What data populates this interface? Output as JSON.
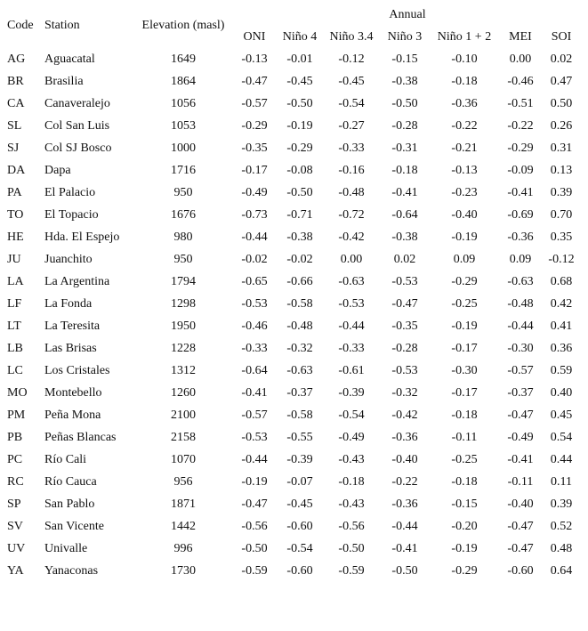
{
  "table": {
    "header": {
      "code": "Code",
      "station": "Station",
      "elevation": "Elevation (masl)",
      "group": "Annual",
      "indices": [
        "ONI",
        "Niño 4",
        "Niño 3.4",
        "Niño 3",
        "Niño 1 + 2",
        "MEI",
        "SOI"
      ]
    },
    "rows": [
      [
        "AG",
        "Aguacatal",
        "1649",
        "-0.13",
        "-0.01",
        "-0.12",
        "-0.15",
        "-0.10",
        "0.00",
        "0.02"
      ],
      [
        "BR",
        "Brasilia",
        "1864",
        "-0.47",
        "-0.45",
        "-0.45",
        "-0.38",
        "-0.18",
        "-0.46",
        "0.47"
      ],
      [
        "CA",
        "Canaveralejo",
        "1056",
        "-0.57",
        "-0.50",
        "-0.54",
        "-0.50",
        "-0.36",
        "-0.51",
        "0.50"
      ],
      [
        "SL",
        "Col San Luis",
        "1053",
        "-0.29",
        "-0.19",
        "-0.27",
        "-0.28",
        "-0.22",
        "-0.22",
        "0.26"
      ],
      [
        "SJ",
        "Col SJ Bosco",
        "1000",
        "-0.35",
        "-0.29",
        "-0.33",
        "-0.31",
        "-0.21",
        "-0.29",
        "0.31"
      ],
      [
        "DA",
        "Dapa",
        "1716",
        "-0.17",
        "-0.08",
        "-0.16",
        "-0.18",
        "-0.13",
        "-0.09",
        "0.13"
      ],
      [
        "PA",
        "El Palacio",
        "950",
        "-0.49",
        "-0.50",
        "-0.48",
        "-0.41",
        "-0.23",
        "-0.41",
        "0.39"
      ],
      [
        "TO",
        "El Topacio",
        "1676",
        "-0.73",
        "-0.71",
        "-0.72",
        "-0.64",
        "-0.40",
        "-0.69",
        "0.70"
      ],
      [
        "HE",
        "Hda. El Espejo",
        "980",
        "-0.44",
        "-0.38",
        "-0.42",
        "-0.38",
        "-0.19",
        "-0.36",
        "0.35"
      ],
      [
        "JU",
        "Juanchito",
        "950",
        "-0.02",
        "-0.02",
        "0.00",
        "0.02",
        "0.09",
        "0.09",
        "-0.12"
      ],
      [
        "LA",
        "La Argentina",
        "1794",
        "-0.65",
        "-0.66",
        "-0.63",
        "-0.53",
        "-0.29",
        "-0.63",
        "0.68"
      ],
      [
        "LF",
        "La Fonda",
        "1298",
        "-0.53",
        "-0.58",
        "-0.53",
        "-0.47",
        "-0.25",
        "-0.48",
        "0.42"
      ],
      [
        "LT",
        "La Teresita",
        "1950",
        "-0.46",
        "-0.48",
        "-0.44",
        "-0.35",
        "-0.19",
        "-0.44",
        "0.41"
      ],
      [
        "LB",
        "Las Brisas",
        "1228",
        "-0.33",
        "-0.32",
        "-0.33",
        "-0.28",
        "-0.17",
        "-0.30",
        "0.36"
      ],
      [
        "LC",
        "Los Cristales",
        "1312",
        "-0.64",
        "-0.63",
        "-0.61",
        "-0.53",
        "-0.30",
        "-0.57",
        "0.59"
      ],
      [
        "MO",
        "Montebello",
        "1260",
        "-0.41",
        "-0.37",
        "-0.39",
        "-0.32",
        "-0.17",
        "-0.37",
        "0.40"
      ],
      [
        "PM",
        "Peña Mona",
        "2100",
        "-0.57",
        "-0.58",
        "-0.54",
        "-0.42",
        "-0.18",
        "-0.47",
        "0.45"
      ],
      [
        "PB",
        "Peñas Blancas",
        "2158",
        "-0.53",
        "-0.55",
        "-0.49",
        "-0.36",
        "-0.11",
        "-0.49",
        "0.54"
      ],
      [
        "PC",
        "Río Cali",
        "1070",
        "-0.44",
        "-0.39",
        "-0.43",
        "-0.40",
        "-0.25",
        "-0.41",
        "0.44"
      ],
      [
        "RC",
        "Río Cauca",
        "956",
        "-0.19",
        "-0.07",
        "-0.18",
        "-0.22",
        "-0.18",
        "-0.11",
        "0.11"
      ],
      [
        "SP",
        "San Pablo",
        "1871",
        "-0.47",
        "-0.45",
        "-0.43",
        "-0.36",
        "-0.15",
        "-0.40",
        "0.39"
      ],
      [
        "SV",
        "San Vicente",
        "1442",
        "-0.56",
        "-0.60",
        "-0.56",
        "-0.44",
        "-0.20",
        "-0.47",
        "0.52"
      ],
      [
        "UV",
        "Univalle",
        "996",
        "-0.50",
        "-0.54",
        "-0.50",
        "-0.41",
        "-0.19",
        "-0.47",
        "0.48"
      ],
      [
        "YA",
        "Yanaconas",
        "1730",
        "-0.59",
        "-0.60",
        "-0.59",
        "-0.50",
        "-0.29",
        "-0.60",
        "0.64"
      ]
    ]
  }
}
